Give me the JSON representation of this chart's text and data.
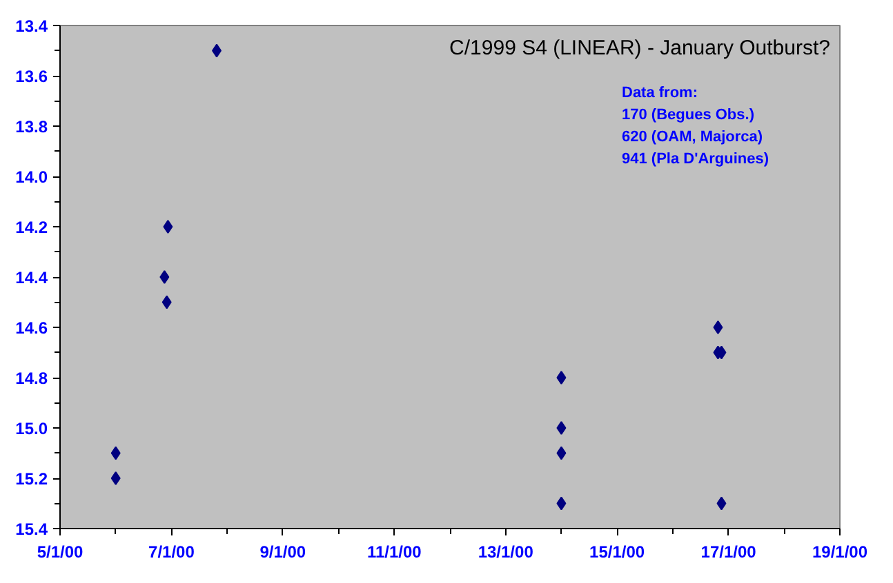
{
  "chart_data": {
    "type": "scatter",
    "title": "C/1999 S4 (LINEAR) - January Outburst?",
    "annotations": [
      "Data from:",
      "170 (Begues Obs.)",
      "620 (OAM, Majorca)",
      "941 (Pla D'Arguines)"
    ],
    "x": [
      "2000-01-06T00:00",
      "2000-01-06T00:00",
      "2000-01-06T21:00",
      "2000-01-06T22:00",
      "2000-01-06T22:30",
      "2000-01-07T19:30",
      "2000-01-14T00:00",
      "2000-01-14T00:00",
      "2000-01-14T00:00",
      "2000-01-14T00:00",
      "2000-01-16T19:30",
      "2000-01-16T19:30",
      "2000-01-16T21:00",
      "2000-01-16T21:00"
    ],
    "values": [
      15.1,
      15.2,
      14.4,
      14.5,
      14.2,
      13.5,
      14.8,
      15.0,
      15.1,
      15.3,
      14.6,
      14.7,
      14.7,
      15.3
    ],
    "color": "#000080",
    "marker": "diamond",
    "grid": false,
    "xlim": [
      "2000-01-05",
      "2000-01-19"
    ],
    "xticks": [
      {
        "value": "2000-01-05",
        "label": "5/1/00"
      },
      {
        "value": "2000-01-06",
        "label": null
      },
      {
        "value": "2000-01-07",
        "label": "7/1/00"
      },
      {
        "value": "2000-01-08",
        "label": null
      },
      {
        "value": "2000-01-09",
        "label": "9/1/00"
      },
      {
        "value": "2000-01-10",
        "label": null
      },
      {
        "value": "2000-01-11",
        "label": "11/1/00"
      },
      {
        "value": "2000-01-12",
        "label": null
      },
      {
        "value": "2000-01-13",
        "label": "13/1/00"
      },
      {
        "value": "2000-01-14",
        "label": null
      },
      {
        "value": "2000-01-15",
        "label": "15/1/00"
      },
      {
        "value": "2000-01-16",
        "label": null
      },
      {
        "value": "2000-01-17",
        "label": "17/1/00"
      },
      {
        "value": "2000-01-18",
        "label": null
      },
      {
        "value": "2000-01-19",
        "label": "19/1/00"
      }
    ],
    "ylim": [
      15.4,
      13.4
    ],
    "yticks": [
      {
        "value": 13.4,
        "label": "13.4"
      },
      {
        "value": 13.5,
        "label": null
      },
      {
        "value": 13.6,
        "label": "13.6"
      },
      {
        "value": 13.7,
        "label": null
      },
      {
        "value": 13.8,
        "label": "13.8"
      },
      {
        "value": 13.9,
        "label": null
      },
      {
        "value": 14.0,
        "label": "14.0"
      },
      {
        "value": 14.1,
        "label": null
      },
      {
        "value": 14.2,
        "label": "14.2"
      },
      {
        "value": 14.3,
        "label": null
      },
      {
        "value": 14.4,
        "label": "14.4"
      },
      {
        "value": 14.5,
        "label": null
      },
      {
        "value": 14.6,
        "label": "14.6"
      },
      {
        "value": 14.7,
        "label": null
      },
      {
        "value": 14.8,
        "label": "14.8"
      },
      {
        "value": 14.9,
        "label": null
      },
      {
        "value": 15.0,
        "label": "15.0"
      },
      {
        "value": 15.1,
        "label": null
      },
      {
        "value": 15.2,
        "label": "15.2"
      },
      {
        "value": 15.3,
        "label": null
      },
      {
        "value": 15.4,
        "label": "15.4"
      }
    ]
  }
}
